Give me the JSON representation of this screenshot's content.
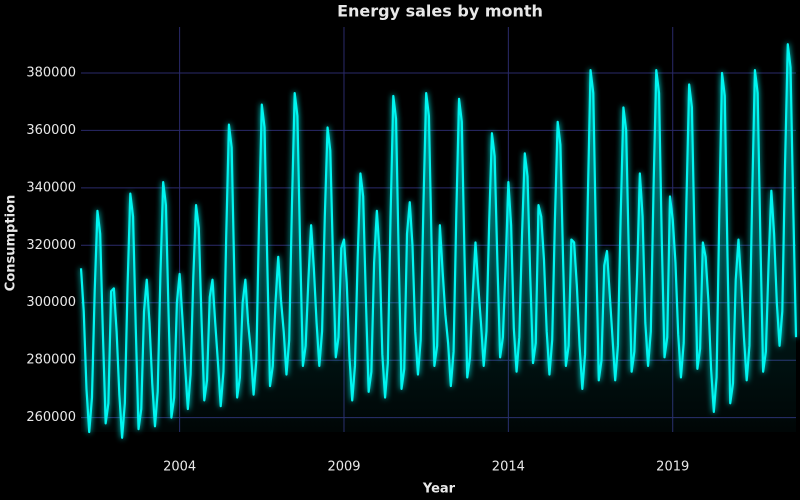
{
  "chart_data": {
    "type": "line",
    "title": "Energy sales by month",
    "x_label": "Year",
    "y_label": "Consumption",
    "x": [
      "2001-01",
      "2001-02",
      "2001-03",
      "2001-04",
      "2001-05",
      "2001-06",
      "2001-07",
      "2001-08",
      "2001-09",
      "2001-10",
      "2001-11",
      "2001-12",
      "2002-01",
      "2002-02",
      "2002-03",
      "2002-04",
      "2002-05",
      "2002-06",
      "2002-07",
      "2002-08",
      "2002-09",
      "2002-10",
      "2002-11",
      "2002-12",
      "2003-01",
      "2003-02",
      "2003-03",
      "2003-04",
      "2003-05",
      "2003-06",
      "2003-07",
      "2003-08",
      "2003-09",
      "2003-10",
      "2003-11",
      "2003-12",
      "2004-01",
      "2004-02",
      "2004-03",
      "2004-04",
      "2004-05",
      "2004-06",
      "2004-07",
      "2004-08",
      "2004-09",
      "2004-10",
      "2004-11",
      "2004-12",
      "2005-01",
      "2005-02",
      "2005-03",
      "2005-04",
      "2005-05",
      "2005-06",
      "2005-07",
      "2005-08",
      "2005-09",
      "2005-10",
      "2005-11",
      "2005-12",
      "2006-01",
      "2006-02",
      "2006-03",
      "2006-04",
      "2006-05",
      "2006-06",
      "2006-07",
      "2006-08",
      "2006-09",
      "2006-10",
      "2006-11",
      "2006-12",
      "2007-01",
      "2007-02",
      "2007-03",
      "2007-04",
      "2007-05",
      "2007-06",
      "2007-07",
      "2007-08",
      "2007-09",
      "2007-10",
      "2007-11",
      "2007-12",
      "2008-01",
      "2008-02",
      "2008-03",
      "2008-04",
      "2008-05",
      "2008-06",
      "2008-07",
      "2008-08",
      "2008-09",
      "2008-10",
      "2008-11",
      "2008-12",
      "2009-01",
      "2009-02",
      "2009-03",
      "2009-04",
      "2009-05",
      "2009-06",
      "2009-07",
      "2009-08",
      "2009-09",
      "2009-10",
      "2009-11",
      "2009-12",
      "2010-01",
      "2010-02",
      "2010-03",
      "2010-04",
      "2010-05",
      "2010-06",
      "2010-07",
      "2010-08",
      "2010-09",
      "2010-10",
      "2010-11",
      "2010-12",
      "2011-01",
      "2011-02",
      "2011-03",
      "2011-04",
      "2011-05",
      "2011-06",
      "2011-07",
      "2011-08",
      "2011-09",
      "2011-10",
      "2011-11",
      "2011-12",
      "2012-01",
      "2012-02",
      "2012-03",
      "2012-04",
      "2012-05",
      "2012-06",
      "2012-07",
      "2012-08",
      "2012-09",
      "2012-10",
      "2012-11",
      "2012-12",
      "2013-01",
      "2013-02",
      "2013-03",
      "2013-04",
      "2013-05",
      "2013-06",
      "2013-07",
      "2013-08",
      "2013-09",
      "2013-10",
      "2013-11",
      "2013-12",
      "2014-01",
      "2014-02",
      "2014-03",
      "2014-04",
      "2014-05",
      "2014-06",
      "2014-07",
      "2014-08",
      "2014-09",
      "2014-10",
      "2014-11",
      "2014-12",
      "2015-01",
      "2015-02",
      "2015-03",
      "2015-04",
      "2015-05",
      "2015-06",
      "2015-07",
      "2015-08",
      "2015-09",
      "2015-10",
      "2015-11",
      "2015-12",
      "2016-01",
      "2016-02",
      "2016-03",
      "2016-04",
      "2016-05",
      "2016-06",
      "2016-07",
      "2016-08",
      "2016-09",
      "2016-10",
      "2016-11",
      "2016-12",
      "2017-01",
      "2017-02",
      "2017-03",
      "2017-04",
      "2017-05",
      "2017-06",
      "2017-07",
      "2017-08",
      "2017-09",
      "2017-10",
      "2017-11",
      "2017-12",
      "2018-01",
      "2018-02",
      "2018-03",
      "2018-04",
      "2018-05",
      "2018-06",
      "2018-07",
      "2018-08",
      "2018-09",
      "2018-10",
      "2018-11",
      "2018-12",
      "2019-01",
      "2019-02",
      "2019-03",
      "2019-04",
      "2019-05",
      "2019-06",
      "2019-07",
      "2019-08",
      "2019-09",
      "2019-10",
      "2019-11",
      "2019-12",
      "2020-01",
      "2020-02",
      "2020-03",
      "2020-04",
      "2020-05",
      "2020-06",
      "2020-07",
      "2020-08",
      "2020-09",
      "2020-10",
      "2020-11",
      "2020-12",
      "2021-01",
      "2021-02",
      "2021-03",
      "2021-04",
      "2021-05",
      "2021-06",
      "2021-07",
      "2021-08",
      "2021-09",
      "2021-10",
      "2021-11",
      "2021-12",
      "2022-01",
      "2022-02",
      "2022-03",
      "2022-04",
      "2022-05",
      "2022-06",
      "2022-07",
      "2022-08",
      "2022-09",
      "2022-10"
    ],
    "series": [
      {
        "name": "Consumption",
        "color": "#00f5f0",
        "values": [
          312000,
          297000,
          270000,
          255000,
          267000,
          304000,
          332000,
          324000,
          289000,
          258000,
          265000,
          304000,
          305000,
          290000,
          268000,
          253000,
          265000,
          306000,
          338000,
          330000,
          291000,
          256000,
          263000,
          297000,
          308000,
          293000,
          272000,
          257000,
          269000,
          310000,
          342000,
          334000,
          295000,
          260000,
          267000,
          300000,
          310000,
          295000,
          278000,
          263000,
          275000,
          309000,
          334000,
          326000,
          294000,
          266000,
          273000,
          302000,
          308000,
          293000,
          279000,
          264000,
          276000,
          323000,
          362000,
          354000,
          308000,
          267000,
          274000,
          300000,
          308000,
          293000,
          283000,
          268000,
          280000,
          329000,
          369000,
          361000,
          314000,
          271000,
          278000,
          300000,
          316000,
          301000,
          290000,
          275000,
          287000,
          334000,
          373000,
          365000,
          319000,
          278000,
          285000,
          308000,
          327000,
          312000,
          293000,
          278000,
          290000,
          330000,
          361000,
          353000,
          315000,
          281000,
          288000,
          319000,
          322000,
          307000,
          281000,
          266000,
          278000,
          316000,
          345000,
          337000,
          301000,
          269000,
          276000,
          314000,
          332000,
          317000,
          282000,
          267000,
          279000,
          330000,
          372000,
          364000,
          315000,
          270000,
          277000,
          324000,
          335000,
          320000,
          290000,
          275000,
          287000,
          334000,
          373000,
          365000,
          319000,
          278000,
          285000,
          327000,
          311000,
          296000,
          286000,
          271000,
          283000,
          331000,
          371000,
          363000,
          316000,
          274000,
          281000,
          303000,
          321000,
          306000,
          293000,
          278000,
          290000,
          328000,
          359000,
          351000,
          314000,
          281000,
          288000,
          313000,
          342000,
          327000,
          291000,
          276000,
          288000,
          324000,
          352000,
          344000,
          309000,
          279000,
          286000,
          334000,
          330000,
          315000,
          290000,
          275000,
          287000,
          329000,
          363000,
          355000,
          314000,
          278000,
          285000,
          322000,
          321000,
          306000,
          285000,
          270000,
          282000,
          336000,
          381000,
          373000,
          321000,
          273000,
          280000,
          313000,
          318000,
          303000,
          288000,
          273000,
          285000,
          330000,
          368000,
          360000,
          316000,
          276000,
          283000,
          310000,
          345000,
          330000,
          293000,
          278000,
          290000,
          340000,
          381000,
          373000,
          322000,
          281000,
          288000,
          337000,
          329000,
          314000,
          289000,
          274000,
          286000,
          335000,
          376000,
          368000,
          320000,
          277000,
          284000,
          321000,
          316000,
          301000,
          277000,
          262000,
          274000,
          331000,
          380000,
          372000,
          316000,
          265000,
          272000,
          308000,
          322000,
          307000,
          288000,
          273000,
          285000,
          337000,
          381000,
          373000,
          322000,
          276000,
          283000,
          314000,
          339000,
          324000,
          300000,
          285000,
          297000,
          348000,
          390000,
          382000,
          333000,
          288000
        ]
      }
    ],
    "xlim": [
      "2001-01",
      "2022-10"
    ],
    "xticks": [
      {
        "value": "2004-01",
        "label": "2004"
      },
      {
        "value": "2009-01",
        "label": "2009"
      },
      {
        "value": "2014-01",
        "label": "2014"
      },
      {
        "value": "2019-01",
        "label": "2019"
      }
    ],
    "ylim": [
      255000,
      396000
    ],
    "yticks": [
      260000,
      280000,
      300000,
      320000,
      340000,
      360000,
      380000
    ],
    "grid": true
  }
}
